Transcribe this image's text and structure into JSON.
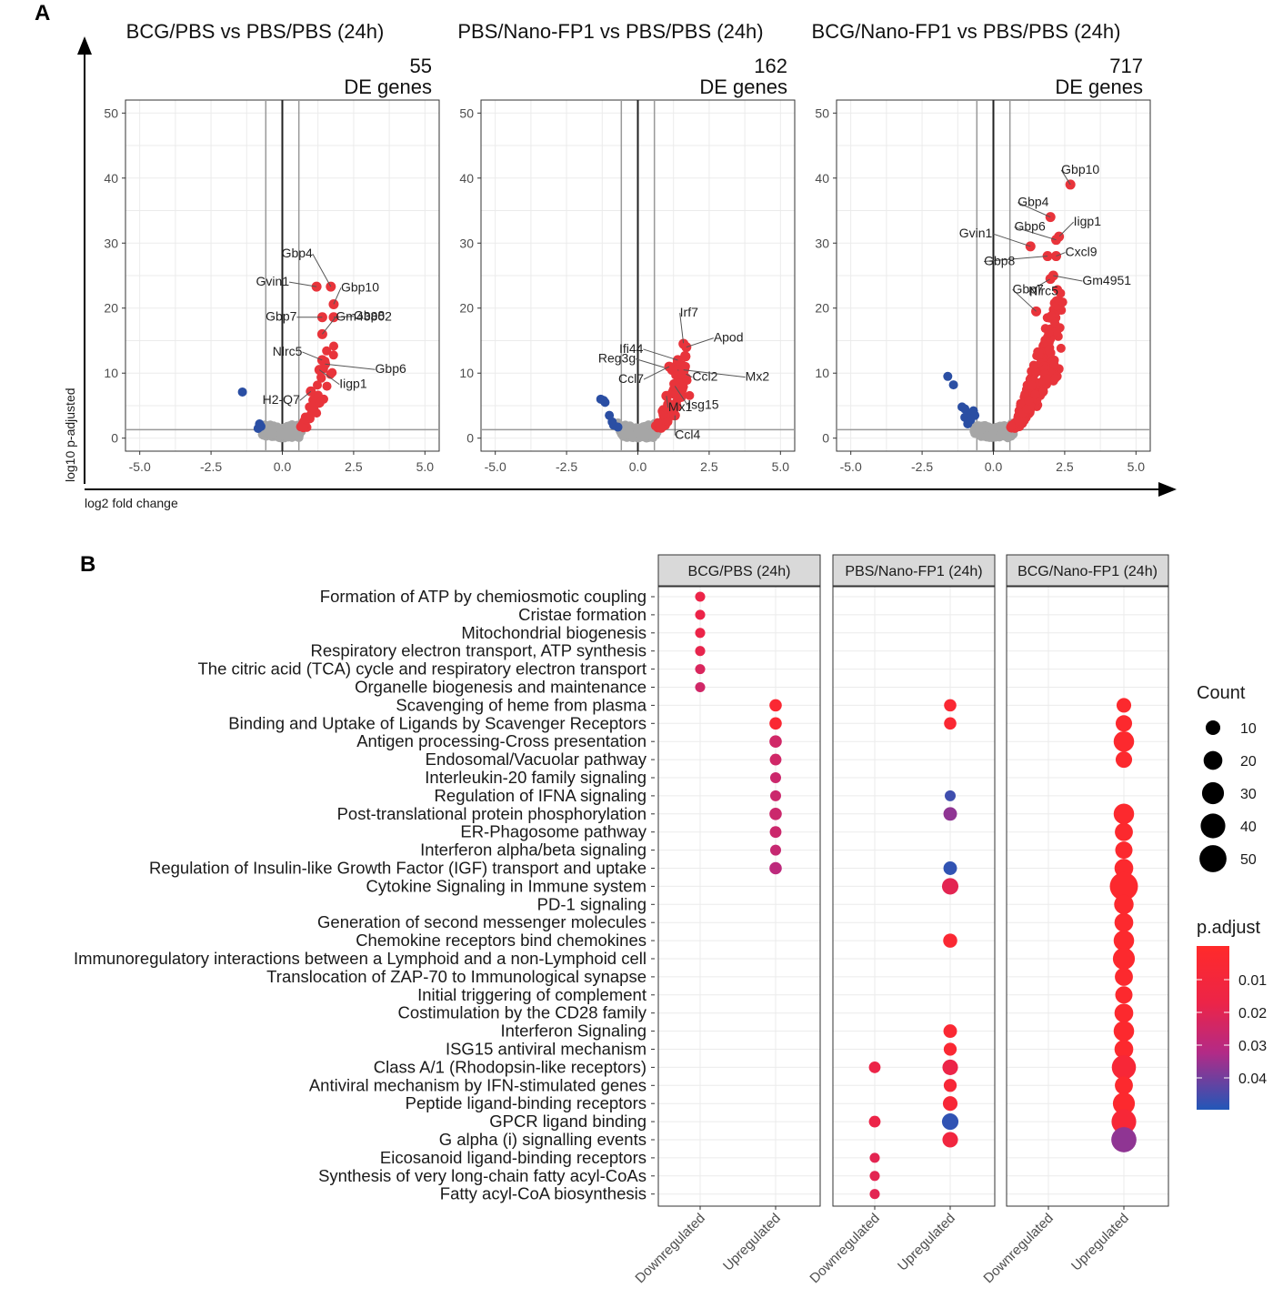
{
  "panel_a_label": "A",
  "panel_b_label": "B",
  "colors": {
    "up": "#e8343b",
    "down": "#2a4ea3",
    "ns": "#a6a6a6"
  },
  "chart_data": [
    {
      "type": "scatter",
      "kind": "volcano",
      "axis": {
        "ylabel": "log10 p-adjusted",
        "xlabel": "log2 fold change"
      },
      "xlim": [
        -5.5,
        5.5
      ],
      "ylim": [
        -2,
        52
      ],
      "xticks": [
        "-5.0",
        "-2.5",
        "0.0",
        "2.5",
        "5.0"
      ],
      "yticks": [
        "0",
        "10",
        "20",
        "30",
        "40",
        "50"
      ],
      "fc_threshold": 0.58,
      "p_threshold": 1.3,
      "panels": [
        {
          "title": "BCG/PBS vs PBS/PBS (24h)",
          "de_count": "55",
          "de_label": "DE genes",
          "labels": [
            {
              "gene": "Gbp4",
              "x": 1.7,
              "y": 23.3
            },
            {
              "gene": "Gvin1",
              "x": 1.2,
              "y": 23.3
            },
            {
              "gene": "Gbp10",
              "x": 1.8,
              "y": 20.6
            },
            {
              "gene": "Gbp7",
              "x": 1.4,
              "y": 18.6
            },
            {
              "gene": "Gbp8",
              "x": 1.8,
              "y": 18.6
            },
            {
              "gene": "Gm43802",
              "x": 1.4,
              "y": 16.0
            },
            {
              "gene": "Nlrc5",
              "x": 1.4,
              "y": 12.0
            },
            {
              "gene": "Iigp1",
              "x": 1.3,
              "y": 10.5
            },
            {
              "gene": "Gbp6",
              "x": 1.5,
              "y": 11.4
            },
            {
              "gene": "H2-Q7",
              "x": 1.0,
              "y": 7.2
            }
          ],
          "downregulated_points": [
            [
              -1.4,
              7.1
            ],
            [
              -0.8,
              2.2
            ],
            [
              -0.75,
              1.8
            ],
            [
              -0.85,
              1.5
            ]
          ]
        },
        {
          "title": "PBS/Nano-FP1 vs PBS/PBS (24h)",
          "de_count": "162",
          "de_label": "DE genes",
          "labels": [
            {
              "gene": "Irf7",
              "x": 1.6,
              "y": 14.5
            },
            {
              "gene": "Apod",
              "x": 1.7,
              "y": 14.0
            },
            {
              "gene": "Reg3g",
              "x": 1.2,
              "y": 10.5
            },
            {
              "gene": "Ifi44",
              "x": 1.4,
              "y": 12.0
            },
            {
              "gene": "Ccl7",
              "x": 1.1,
              "y": 11.0
            },
            {
              "gene": "Ccl2",
              "x": 1.4,
              "y": 10.5
            },
            {
              "gene": "Mx2",
              "x": 1.6,
              "y": 10.5
            },
            {
              "gene": "Mx1",
              "x": 1.0,
              "y": 6.5
            },
            {
              "gene": "Isg15",
              "x": 1.3,
              "y": 8.0
            },
            {
              "gene": "Ccl4",
              "x": 1.3,
              "y": 3.5
            }
          ],
          "downregulated_points": [
            [
              -1.3,
              6.0
            ],
            [
              -1.2,
              5.8
            ],
            [
              -1.15,
              5.5
            ],
            [
              -1.0,
              3.5
            ],
            [
              -0.9,
              2.5
            ],
            [
              -0.85,
              2.0
            ],
            [
              -0.7,
              1.7
            ]
          ]
        },
        {
          "title": "BCG/Nano-FP1 vs PBS/PBS (24h)",
          "de_count": "717",
          "de_label": "DE genes",
          "labels": [
            {
              "gene": "Gbp10",
              "x": 2.7,
              "y": 39.0
            },
            {
              "gene": "Gbp4",
              "x": 2.0,
              "y": 34.0
            },
            {
              "gene": "Iigp1",
              "x": 2.3,
              "y": 31.0
            },
            {
              "gene": "Gvin1",
              "x": 1.3,
              "y": 29.5
            },
            {
              "gene": "Gbp6",
              "x": 2.2,
              "y": 30.5
            },
            {
              "gene": "Cxcl9",
              "x": 2.2,
              "y": 28.0
            },
            {
              "gene": "Gbp8",
              "x": 1.9,
              "y": 28.0
            },
            {
              "gene": "Nlrc5",
              "x": 2.0,
              "y": 24.5
            },
            {
              "gene": "Gm4951",
              "x": 2.1,
              "y": 25.0
            },
            {
              "gene": "Gbp7",
              "x": 1.5,
              "y": 19.5
            }
          ],
          "downregulated_points": [
            [
              -1.6,
              9.5
            ],
            [
              -1.4,
              8.2
            ],
            [
              -1.1,
              4.8
            ],
            [
              -1.0,
              4.5
            ],
            [
              -0.9,
              3.8
            ],
            [
              -1.0,
              3.2
            ],
            [
              -0.8,
              2.8
            ],
            [
              -0.7,
              4.2
            ],
            [
              -0.65,
              3.5
            ],
            [
              -0.9,
              2.2
            ]
          ]
        }
      ]
    },
    {
      "type": "scatter",
      "kind": "dotplot",
      "facets": [
        "BCG/PBS (24h)",
        "PBS/Nano-FP1 (24h)",
        "BCG/Nano-FP1 (24h)"
      ],
      "x_categories": [
        "Downregulated",
        "Upregulated"
      ],
      "terms": [
        "Formation of ATP by chemiosmotic coupling",
        "Cristae formation",
        "Mitochondrial biogenesis",
        "Respiratory electron transport, ATP synthesis",
        "The citric acid (TCA) cycle and respiratory electron transport",
        "Organelle biogenesis and maintenance",
        "Scavenging of heme from plasma",
        "Binding and Uptake of Ligands by Scavenger Receptors",
        "Antigen processing-Cross presentation",
        "Endosomal/Vacuolar pathway",
        "Interleukin-20 family signaling",
        "Regulation of IFNA signaling",
        "Post-translational protein phosphorylation",
        "ER-Phagosome pathway",
        "Interferon alpha/beta signaling",
        "Regulation of Insulin-like Growth Factor (IGF) transport and uptake",
        "Cytokine Signaling in Immune system",
        "PD-1 signaling",
        "Generation of second messenger molecules",
        "Chemokine receptors bind chemokines",
        "Immunoregulatory interactions between a Lymphoid and a non-Lymphoid cell",
        "Translocation of ZAP-70 to Immunological synapse",
        "Initial triggering of complement",
        "Costimulation by the CD28 family",
        "Interferon Signaling",
        "ISG15 antiviral mechanism",
        "Class A/1 (Rhodopsin-like receptors)",
        "Antiviral mechanism by IFN-stimulated genes",
        "Peptide ligand-binding receptors",
        "GPCR ligand binding",
        "G alpha (i) signalling events",
        "Eicosanoid ligand-binding receptors",
        "Synthesis of very long-chain fatty acyl-CoAs",
        "Fatty acyl-CoA biosynthesis"
      ],
      "points": [
        {
          "facet": 0,
          "cat": 0,
          "term": 0,
          "count": 3,
          "p": 0.018
        },
        {
          "facet": 0,
          "cat": 0,
          "term": 1,
          "count": 3,
          "p": 0.018
        },
        {
          "facet": 0,
          "cat": 0,
          "term": 2,
          "count": 3,
          "p": 0.018
        },
        {
          "facet": 0,
          "cat": 0,
          "term": 3,
          "count": 3,
          "p": 0.019
        },
        {
          "facet": 0,
          "cat": 0,
          "term": 4,
          "count": 3,
          "p": 0.022
        },
        {
          "facet": 0,
          "cat": 0,
          "term": 5,
          "count": 3,
          "p": 0.024
        },
        {
          "facet": 0,
          "cat": 1,
          "term": 6,
          "count": 6,
          "p": 0.008
        },
        {
          "facet": 0,
          "cat": 1,
          "term": 7,
          "count": 6,
          "p": 0.008
        },
        {
          "facet": 0,
          "cat": 1,
          "term": 8,
          "count": 6,
          "p": 0.024
        },
        {
          "facet": 0,
          "cat": 1,
          "term": 9,
          "count": 5,
          "p": 0.024
        },
        {
          "facet": 0,
          "cat": 1,
          "term": 10,
          "count": 4,
          "p": 0.025
        },
        {
          "facet": 0,
          "cat": 1,
          "term": 11,
          "count": 4,
          "p": 0.025
        },
        {
          "facet": 0,
          "cat": 1,
          "term": 12,
          "count": 6,
          "p": 0.025
        },
        {
          "facet": 0,
          "cat": 1,
          "term": 13,
          "count": 5,
          "p": 0.025
        },
        {
          "facet": 0,
          "cat": 1,
          "term": 14,
          "count": 4,
          "p": 0.026
        },
        {
          "facet": 0,
          "cat": 1,
          "term": 15,
          "count": 6,
          "p": 0.028
        },
        {
          "facet": 1,
          "cat": 1,
          "term": 6,
          "count": 6,
          "p": 0.008
        },
        {
          "facet": 1,
          "cat": 1,
          "term": 7,
          "count": 6,
          "p": 0.008
        },
        {
          "facet": 1,
          "cat": 1,
          "term": 11,
          "count": 4,
          "p": 0.046
        },
        {
          "facet": 1,
          "cat": 1,
          "term": 12,
          "count": 8,
          "p": 0.035
        },
        {
          "facet": 1,
          "cat": 1,
          "term": 15,
          "count": 8,
          "p": 0.048
        },
        {
          "facet": 1,
          "cat": 1,
          "term": 16,
          "count": 14,
          "p": 0.02
        },
        {
          "facet": 1,
          "cat": 1,
          "term": 19,
          "count": 9,
          "p": 0.008
        },
        {
          "facet": 1,
          "cat": 1,
          "term": 24,
          "count": 8,
          "p": 0.008
        },
        {
          "facet": 1,
          "cat": 1,
          "term": 25,
          "count": 7,
          "p": 0.008
        },
        {
          "facet": 1,
          "cat": 0,
          "term": 26,
          "count": 5,
          "p": 0.018
        },
        {
          "facet": 1,
          "cat": 1,
          "term": 26,
          "count": 12,
          "p": 0.018
        },
        {
          "facet": 1,
          "cat": 1,
          "term": 27,
          "count": 7,
          "p": 0.01
        },
        {
          "facet": 1,
          "cat": 1,
          "term": 28,
          "count": 10,
          "p": 0.01
        },
        {
          "facet": 1,
          "cat": 0,
          "term": 29,
          "count": 5,
          "p": 0.018
        },
        {
          "facet": 1,
          "cat": 1,
          "term": 29,
          "count": 14,
          "p": 0.048
        },
        {
          "facet": 1,
          "cat": 1,
          "term": 30,
          "count": 12,
          "p": 0.014
        },
        {
          "facet": 1,
          "cat": 0,
          "term": 31,
          "count": 3,
          "p": 0.02
        },
        {
          "facet": 1,
          "cat": 0,
          "term": 32,
          "count": 3,
          "p": 0.02
        },
        {
          "facet": 1,
          "cat": 0,
          "term": 33,
          "count": 3,
          "p": 0.02
        },
        {
          "facet": 2,
          "cat": 1,
          "term": 6,
          "count": 10,
          "p": 0.006
        },
        {
          "facet": 2,
          "cat": 1,
          "term": 7,
          "count": 14,
          "p": 0.006
        },
        {
          "facet": 2,
          "cat": 1,
          "term": 8,
          "count": 25,
          "p": 0.006
        },
        {
          "facet": 2,
          "cat": 1,
          "term": 9,
          "count": 14,
          "p": 0.006
        },
        {
          "facet": 2,
          "cat": 1,
          "term": 12,
          "count": 25,
          "p": 0.006
        },
        {
          "facet": 2,
          "cat": 1,
          "term": 13,
          "count": 18,
          "p": 0.006
        },
        {
          "facet": 2,
          "cat": 1,
          "term": 14,
          "count": 16,
          "p": 0.006
        },
        {
          "facet": 2,
          "cat": 1,
          "term": 15,
          "count": 20,
          "p": 0.006
        },
        {
          "facet": 2,
          "cat": 1,
          "term": 16,
          "count": 55,
          "p": 0.006
        },
        {
          "facet": 2,
          "cat": 1,
          "term": 17,
          "count": 22,
          "p": 0.006
        },
        {
          "facet": 2,
          "cat": 1,
          "term": 18,
          "count": 20,
          "p": 0.006
        },
        {
          "facet": 2,
          "cat": 1,
          "term": 19,
          "count": 25,
          "p": 0.006
        },
        {
          "facet": 2,
          "cat": 1,
          "term": 20,
          "count": 30,
          "p": 0.006
        },
        {
          "facet": 2,
          "cat": 1,
          "term": 21,
          "count": 18,
          "p": 0.006
        },
        {
          "facet": 2,
          "cat": 1,
          "term": 22,
          "count": 16,
          "p": 0.006
        },
        {
          "facet": 2,
          "cat": 1,
          "term": 23,
          "count": 20,
          "p": 0.006
        },
        {
          "facet": 2,
          "cat": 1,
          "term": 24,
          "count": 25,
          "p": 0.006
        },
        {
          "facet": 2,
          "cat": 1,
          "term": 25,
          "count": 20,
          "p": 0.006
        },
        {
          "facet": 2,
          "cat": 1,
          "term": 26,
          "count": 38,
          "p": 0.01
        },
        {
          "facet": 2,
          "cat": 1,
          "term": 27,
          "count": 18,
          "p": 0.006
        },
        {
          "facet": 2,
          "cat": 1,
          "term": 28,
          "count": 30,
          "p": 0.006
        },
        {
          "facet": 2,
          "cat": 1,
          "term": 29,
          "count": 40,
          "p": 0.01
        },
        {
          "facet": 2,
          "cat": 1,
          "term": 30,
          "count": 42,
          "p": 0.035
        }
      ],
      "legend_count_title": "Count",
      "legend_count_values": [
        "10",
        "20",
        "30",
        "40",
        "50"
      ],
      "legend_p_title": "p.adjust",
      "legend_p_values": [
        "0.01",
        "0.02",
        "0.03",
        "0.04"
      ]
    }
  ]
}
